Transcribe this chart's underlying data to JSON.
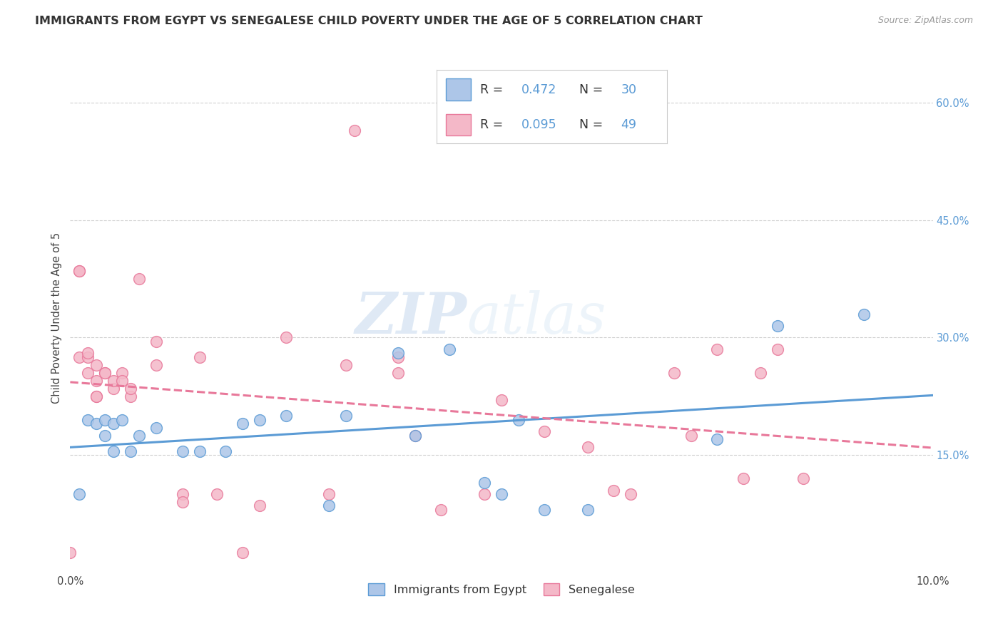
{
  "title": "IMMIGRANTS FROM EGYPT VS SENEGALESE CHILD POVERTY UNDER THE AGE OF 5 CORRELATION CHART",
  "source": "Source: ZipAtlas.com",
  "ylabel": "Child Poverty Under the Age of 5",
  "xmin": 0.0,
  "xmax": 0.1,
  "ymin": 0.0,
  "ymax": 0.65,
  "x_ticks": [
    0.0,
    0.1
  ],
  "x_tick_labels": [
    "0.0%",
    "10.0%"
  ],
  "y_ticks_right": [
    0.15,
    0.3,
    0.45,
    0.6
  ],
  "y_tick_labels_right": [
    "15.0%",
    "30.0%",
    "45.0%",
    "60.0%"
  ],
  "color_egypt": "#adc6e8",
  "color_senegal": "#f4b8c8",
  "color_egypt_line": "#5b9bd5",
  "color_senegal_line": "#e8789a",
  "watermark_zip": "ZIP",
  "watermark_atlas": "atlas",
  "egypt_x": [
    0.001,
    0.002,
    0.003,
    0.004,
    0.004,
    0.005,
    0.005,
    0.006,
    0.007,
    0.008,
    0.01,
    0.013,
    0.015,
    0.018,
    0.02,
    0.022,
    0.025,
    0.03,
    0.032,
    0.038,
    0.04,
    0.044,
    0.048,
    0.05,
    0.052,
    0.055,
    0.06,
    0.075,
    0.082,
    0.092
  ],
  "egypt_y": [
    0.1,
    0.195,
    0.19,
    0.195,
    0.175,
    0.19,
    0.155,
    0.195,
    0.155,
    0.175,
    0.185,
    0.155,
    0.155,
    0.155,
    0.19,
    0.195,
    0.2,
    0.085,
    0.2,
    0.28,
    0.175,
    0.285,
    0.115,
    0.1,
    0.195,
    0.08,
    0.08,
    0.17,
    0.315,
    0.33
  ],
  "senegal_x": [
    0.0,
    0.001,
    0.001,
    0.001,
    0.002,
    0.002,
    0.002,
    0.003,
    0.003,
    0.003,
    0.003,
    0.004,
    0.004,
    0.005,
    0.005,
    0.006,
    0.006,
    0.007,
    0.007,
    0.008,
    0.01,
    0.01,
    0.013,
    0.013,
    0.015,
    0.017,
    0.02,
    0.022,
    0.025,
    0.03,
    0.032,
    0.033,
    0.038,
    0.038,
    0.04,
    0.043,
    0.048,
    0.05,
    0.055,
    0.06,
    0.063,
    0.065,
    0.07,
    0.072,
    0.075,
    0.078,
    0.08,
    0.082,
    0.085
  ],
  "senegal_y": [
    0.025,
    0.385,
    0.385,
    0.275,
    0.255,
    0.275,
    0.28,
    0.265,
    0.245,
    0.225,
    0.225,
    0.255,
    0.255,
    0.235,
    0.245,
    0.255,
    0.245,
    0.225,
    0.235,
    0.375,
    0.265,
    0.295,
    0.1,
    0.09,
    0.275,
    0.1,
    0.025,
    0.085,
    0.3,
    0.1,
    0.265,
    0.565,
    0.255,
    0.275,
    0.175,
    0.08,
    0.1,
    0.22,
    0.18,
    0.16,
    0.105,
    0.1,
    0.255,
    0.175,
    0.285,
    0.12,
    0.255,
    0.285,
    0.12
  ],
  "grid_color": "#d0d0d0",
  "bg_color": "#ffffff",
  "title_fontsize": 11.5,
  "axis_fontsize": 10.5,
  "tick_fontsize": 10.5,
  "legend_fontsize": 12.5
}
